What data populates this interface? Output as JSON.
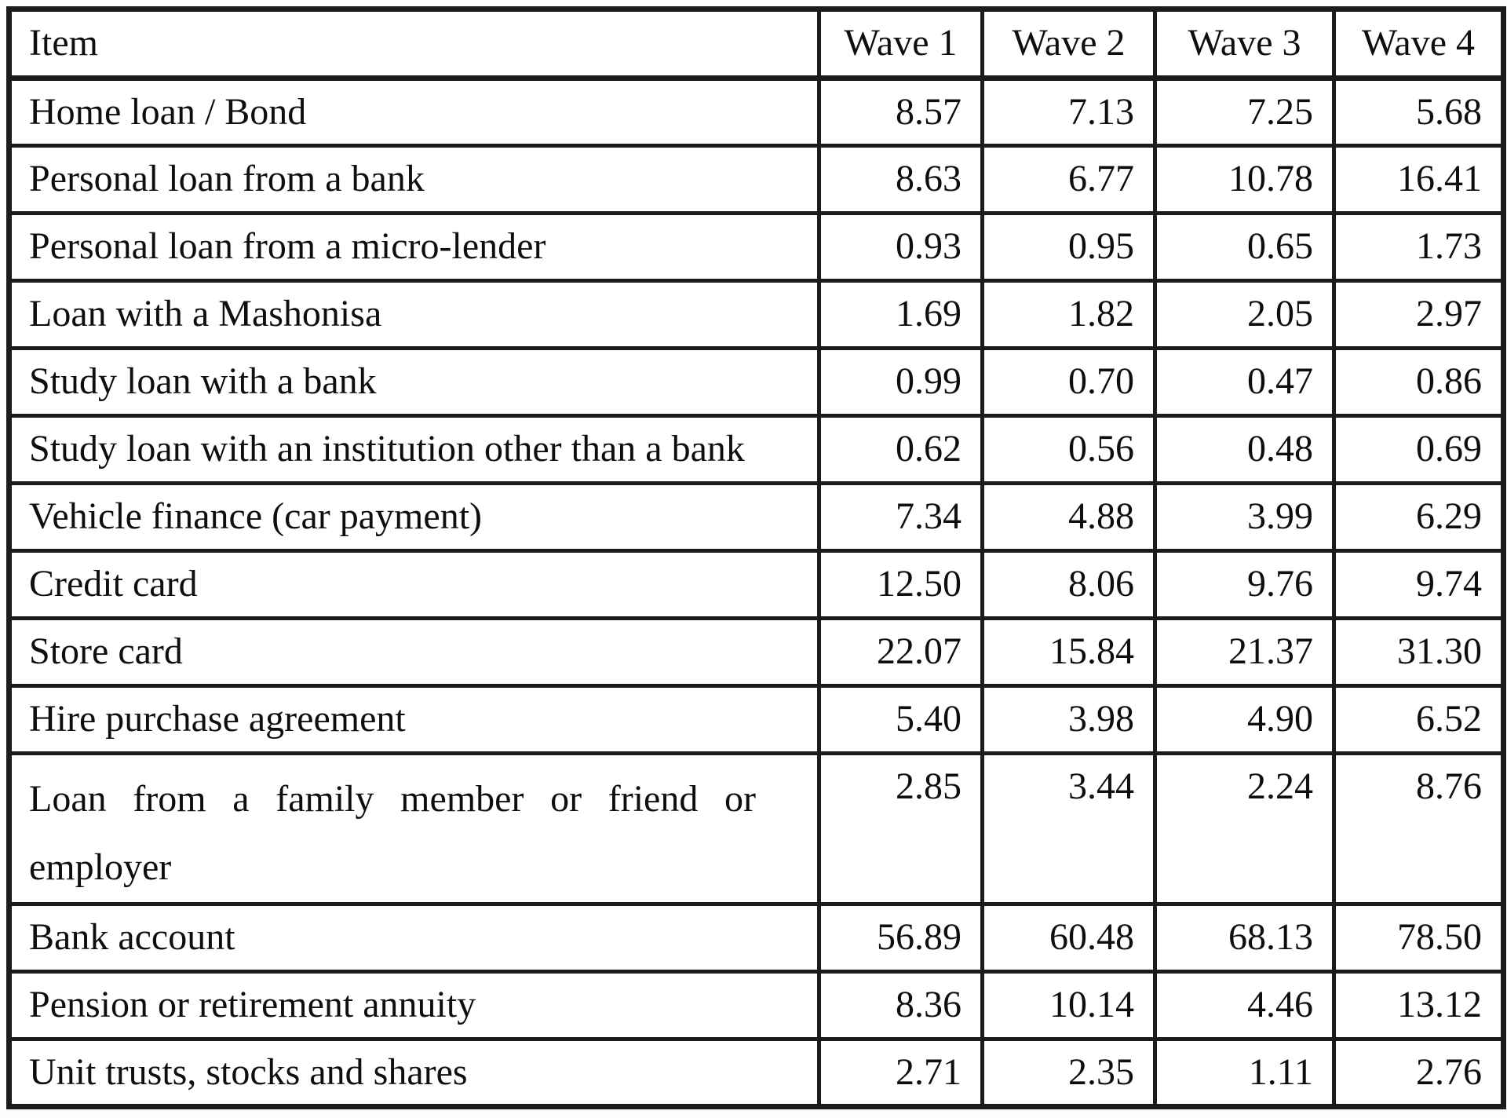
{
  "table": {
    "columns": [
      "Item",
      "Wave 1",
      "Wave 2",
      "Wave 3",
      "Wave 4"
    ],
    "rows": [
      {
        "item": "Home loan / Bond",
        "values": [
          "8.57",
          "7.13",
          "7.25",
          "5.68"
        ]
      },
      {
        "item": "Personal loan from a bank",
        "values": [
          "8.63",
          "6.77",
          "10.78",
          "16.41"
        ]
      },
      {
        "item": "Personal loan from a micro-lender",
        "values": [
          "0.93",
          "0.95",
          "0.65",
          "1.73"
        ]
      },
      {
        "item": "Loan with a Mashonisa",
        "values": [
          "1.69",
          "1.82",
          "2.05",
          "2.97"
        ]
      },
      {
        "item": "Study loan with a bank",
        "values": [
          "0.99",
          "0.70",
          "0.47",
          "0.86"
        ]
      },
      {
        "item": "Study loan with an institution other than a bank",
        "values": [
          "0.62",
          "0.56",
          "0.48",
          "0.69"
        ]
      },
      {
        "item": "Vehicle finance (car payment)",
        "values": [
          "7.34",
          "4.88",
          "3.99",
          "6.29"
        ]
      },
      {
        "item": "Credit card",
        "values": [
          "12.50",
          "8.06",
          "9.76",
          "9.74"
        ]
      },
      {
        "item": "Store card",
        "values": [
          "22.07",
          "15.84",
          "21.37",
          "31.30"
        ]
      },
      {
        "item": "Hire purchase agreement",
        "values": [
          "5.40",
          "3.98",
          "4.90",
          "6.52"
        ]
      },
      {
        "item": "Loan from a family member or friend or employer",
        "values": [
          "2.85",
          "3.44",
          "2.24",
          "8.76"
        ],
        "tall": true
      },
      {
        "item": "Bank account",
        "values": [
          "56.89",
          "60.48",
          "68.13",
          "78.50"
        ]
      },
      {
        "item": "Pension or retirement annuity",
        "values": [
          "8.36",
          "10.14",
          "4.46",
          "13.12"
        ]
      },
      {
        "item": "Unit trusts, stocks and shares",
        "values": [
          "2.71",
          "2.35",
          "1.11",
          "2.76"
        ]
      }
    ]
  },
  "colors": {
    "border": "#1b1b1b",
    "text": "#0e0e0e",
    "background": "#ffffff"
  }
}
